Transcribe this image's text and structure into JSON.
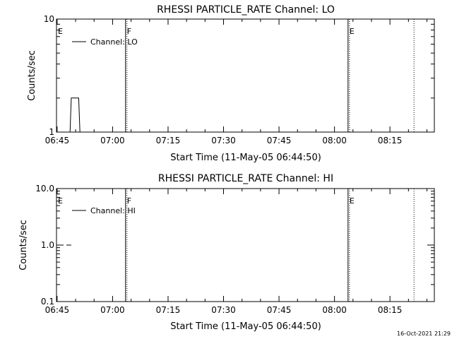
{
  "chart_data": [
    {
      "type": "line",
      "title": "RHESSI PARTICLE_RATE Channel: LO",
      "xlabel": "Start Time (11-May-05 06:44:50)",
      "ylabel": "Counts/sec",
      "xlim": [
        "06:44:50",
        "08:27:00"
      ],
      "ylim": [
        1,
        10
      ],
      "yscale": "log",
      "x_ticks": [
        "06:45",
        "07:00",
        "07:15",
        "07:30",
        "07:45",
        "08:00",
        "08:15"
      ],
      "y_ticks": [
        "1",
        "10"
      ],
      "legend": {
        "label": "Channel: LO",
        "position": "top-left"
      },
      "series": [
        {
          "name": "Channel: LO",
          "color": "#000000",
          "points": [
            [
              "06:48:30",
              1
            ],
            [
              "06:48:50",
              2
            ],
            [
              "06:50:50",
              2
            ],
            [
              "06:51:10",
              1
            ]
          ]
        }
      ],
      "events": [
        {
          "time": "06:44:50",
          "label": "E",
          "style": "none"
        },
        {
          "time": "07:03:30",
          "label": "F",
          "style": "solid"
        },
        {
          "time": "08:03:40",
          "label": "E",
          "style": "solid"
        },
        {
          "time": "08:21:30",
          "label": "",
          "style": "dotted"
        }
      ]
    },
    {
      "type": "line",
      "title": "RHESSI PARTICLE_RATE Channel: HI",
      "xlabel": "Start Time (11-May-05 06:44:50)",
      "ylabel": "Counts/sec",
      "xlim": [
        "06:44:50",
        "08:27:00"
      ],
      "ylim": [
        0.1,
        10
      ],
      "yscale": "log",
      "x_ticks": [
        "06:45",
        "07:00",
        "07:15",
        "07:30",
        "07:45",
        "08:00",
        "08:15"
      ],
      "y_ticks": [
        "0.1",
        "1.0",
        "10.0"
      ],
      "legend": {
        "label": "Channel: HI",
        "position": "top-left"
      },
      "series": [
        {
          "name": "Channel: HI",
          "color": "#000000",
          "points": [
            [
              "06:47:30",
              1.0
            ],
            [
              "06:48:50",
              1.0
            ]
          ]
        }
      ],
      "events": [
        {
          "time": "06:44:50",
          "label": "E",
          "style": "none"
        },
        {
          "time": "07:03:30",
          "label": "F",
          "style": "solid"
        },
        {
          "time": "08:03:40",
          "label": "E",
          "style": "solid"
        },
        {
          "time": "08:21:30",
          "label": "",
          "style": "dotted"
        }
      ]
    }
  ],
  "footer": {
    "timestamp": "16-Oct-2021 21:29"
  }
}
